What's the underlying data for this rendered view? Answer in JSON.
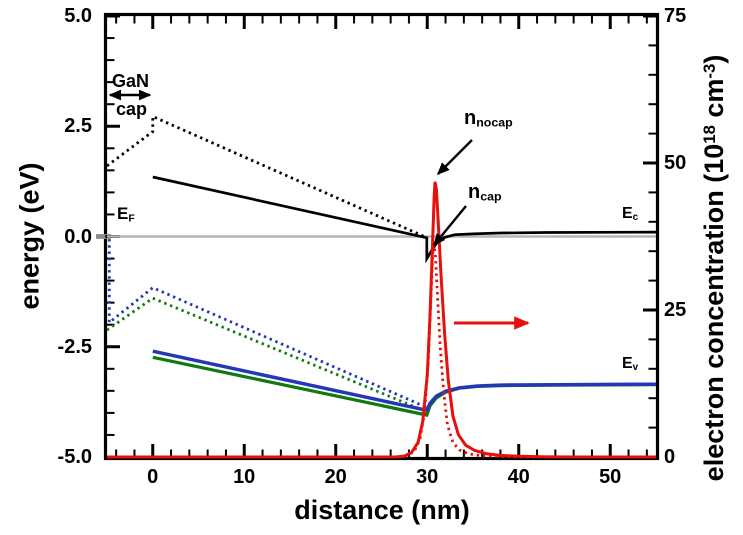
{
  "chart_data": {
    "type": "line",
    "title": "",
    "xlabel": "distance (nm)",
    "ylabel_left": "energy (eV)",
    "ylabel_right_parts": {
      "pre": "electron concentration (10",
      "sup1": "18",
      "mid": " cm",
      "sup2": "-3",
      "post": ")"
    },
    "x_range": [
      -5,
      55
    ],
    "y_left_range": [
      -5,
      5
    ],
    "y_right_range": [
      0,
      75
    ],
    "x_tick_values": [
      0,
      10,
      20,
      30,
      40,
      50
    ],
    "x_tick_labels": [
      "0",
      "10",
      "20",
      "30",
      "40",
      "50"
    ],
    "x_minor_step": 2,
    "y_left_tick_values": [
      5,
      2.5,
      0,
      -2.5,
      -5
    ],
    "y_left_tick_labels": [
      "5.0",
      "2.5",
      "0.0",
      "-2.5",
      "-5.0"
    ],
    "y_left_minor_step": 0.5,
    "y_right_tick_values": [
      75,
      50,
      25,
      0
    ],
    "y_right_tick_labels": [
      "75",
      "50",
      "25",
      "0"
    ],
    "y_right_minor_step": 5,
    "grid": false,
    "legend": "none (in-plot text annotations)",
    "series": [
      {
        "id": "fermi-level",
        "name": "E_F Fermi level",
        "axis": "left",
        "color": "#b5b5b5",
        "style": "solid",
        "width": 2.4,
        "points": [
          [
            -5,
            0
          ],
          [
            55,
            0
          ]
        ]
      },
      {
        "id": "ev-green-cap",
        "name": "valence band 2 with cap",
        "axis": "left",
        "color": "#0f7a0f",
        "style": "dotted",
        "width": 2.8,
        "points": [
          [
            -5,
            -2.12
          ],
          [
            0,
            -1.4
          ],
          [
            29.9,
            -3.97
          ]
        ]
      },
      {
        "id": "ev-blue-cap",
        "name": "valence band 1 with cap",
        "axis": "left",
        "color": "#2438b5",
        "style": "dotted",
        "width": 2.8,
        "points": [
          [
            -4.75,
            -0.06
          ],
          [
            -4.75,
            -1.95
          ],
          [
            0,
            -1.16
          ],
          [
            29.9,
            -3.87
          ]
        ]
      },
      {
        "id": "ev-green-nocap",
        "name": "valence band 2 no cap",
        "axis": "left",
        "color": "#0f7a0f",
        "style": "solid",
        "width": 3.2,
        "points": [
          [
            0,
            -2.74
          ],
          [
            29.95,
            -4.05
          ],
          [
            30.3,
            -3.84
          ],
          [
            31,
            -3.66
          ],
          [
            32,
            -3.53
          ],
          [
            33.5,
            -3.44
          ],
          [
            35.5,
            -3.4
          ],
          [
            38,
            -3.38
          ],
          [
            44,
            -3.37
          ],
          [
            55,
            -3.36
          ]
        ]
      },
      {
        "id": "ev-blue-nocap",
        "name": "valence band 1 no cap (E_v)",
        "axis": "left",
        "color": "#2438b5",
        "style": "solid",
        "width": 3.5,
        "points": [
          [
            0,
            -2.6
          ],
          [
            29.95,
            -3.94
          ],
          [
            30.3,
            -3.78
          ],
          [
            31,
            -3.62
          ],
          [
            32,
            -3.51
          ],
          [
            33.5,
            -3.43
          ],
          [
            35.5,
            -3.39
          ],
          [
            38,
            -3.37
          ],
          [
            44,
            -3.36
          ],
          [
            55,
            -3.35
          ]
        ]
      },
      {
        "id": "ec-cap",
        "name": "conduction band with cap",
        "axis": "left",
        "color": "#000000",
        "style": "dotted",
        "width": 2.8,
        "points": [
          [
            -5,
            1.6
          ],
          [
            0,
            2.38
          ],
          [
            0,
            2.72
          ],
          [
            29.9,
            -0.02
          ]
        ]
      },
      {
        "id": "ec-nocap",
        "name": "conduction band no cap (E_c)",
        "axis": "left",
        "color": "#000000",
        "style": "solid",
        "width": 2.7,
        "points": [
          [
            0,
            1.35
          ],
          [
            29.95,
            -0.03
          ],
          [
            29.95,
            -0.5
          ],
          [
            30.6,
            -0.28
          ],
          [
            31.2,
            -0.1
          ],
          [
            31.9,
            -0.02
          ],
          [
            33,
            0.04
          ],
          [
            35,
            0.06
          ],
          [
            38,
            0.08
          ],
          [
            43,
            0.09
          ],
          [
            55,
            0.1
          ]
        ]
      },
      {
        "id": "n-cap",
        "name": "electron concentration with cap",
        "axis": "right",
        "color": "#e8100c",
        "style": "dotted",
        "width": 2.8,
        "points": [
          [
            -5,
            0
          ],
          [
            26.8,
            0
          ],
          [
            27.8,
            0.2
          ],
          [
            28.6,
            1
          ],
          [
            29.2,
            3
          ],
          [
            29.7,
            7.5
          ],
          [
            30.1,
            16
          ],
          [
            30.4,
            27
          ],
          [
            30.6,
            34.5
          ],
          [
            30.72,
            36.6
          ],
          [
            30.9,
            34
          ],
          [
            31.1,
            28
          ],
          [
            31.4,
            19
          ],
          [
            31.8,
            11
          ],
          [
            32.2,
            5.5
          ],
          [
            32.8,
            2.5
          ],
          [
            33.5,
            1.2
          ],
          [
            34.5,
            0.55
          ],
          [
            36,
            0.2
          ],
          [
            38,
            0.06
          ],
          [
            40,
            0
          ],
          [
            55,
            0
          ]
        ]
      },
      {
        "id": "n-nocap",
        "name": "electron concentration no cap",
        "axis": "right",
        "color": "#e8100c",
        "style": "solid",
        "width": 3,
        "points": [
          [
            -5,
            0
          ],
          [
            26.5,
            0
          ],
          [
            27.5,
            0.15
          ],
          [
            28.3,
            0.8
          ],
          [
            29,
            2.5
          ],
          [
            29.5,
            6
          ],
          [
            30,
            14
          ],
          [
            30.3,
            24
          ],
          [
            30.55,
            35
          ],
          [
            30.75,
            44
          ],
          [
            30.85,
            46.8
          ],
          [
            31,
            45.5
          ],
          [
            31.2,
            40
          ],
          [
            31.5,
            31
          ],
          [
            31.9,
            21
          ],
          [
            32.3,
            13
          ],
          [
            32.8,
            7
          ],
          [
            33.4,
            3.8
          ],
          [
            34.2,
            2
          ],
          [
            35.2,
            1.1
          ],
          [
            36.5,
            0.55
          ],
          [
            38,
            0.28
          ],
          [
            40,
            0.12
          ],
          [
            42.5,
            0.04
          ],
          [
            46,
            0
          ],
          [
            55,
            0
          ]
        ]
      }
    ]
  },
  "annotations": {
    "gan": {
      "line1": "GaN",
      "line2": "cap"
    },
    "ef": {
      "base": "E",
      "sub": "F"
    },
    "ec": {
      "base": "E",
      "sub": "c"
    },
    "ev": {
      "base": "E",
      "sub": "v"
    },
    "n_nocap": {
      "base": "n",
      "sub": "nocap"
    },
    "n_cap": {
      "base": "n",
      "sub": "cap"
    },
    "arrows": [
      {
        "id": "gan-cap-extent-arrow",
        "from": [
          110,
          95
        ],
        "to": [
          150,
          95
        ],
        "color": "#000000",
        "width": 2.4,
        "double": true
      },
      {
        "id": "n-nocap-arrow",
        "from": [
          472,
          140
        ],
        "to": [
          438,
          174
        ],
        "color": "#000000",
        "width": 2.4,
        "double": false
      },
      {
        "id": "n-cap-arrow",
        "from": [
          466,
          206
        ],
        "to": [
          434,
          245
        ],
        "color": "#000000",
        "width": 2.4,
        "double": false
      },
      {
        "id": "right-axis-pointer-arrow",
        "from": [
          454,
          323
        ],
        "to": [
          528,
          323
        ],
        "color": "#e8100c",
        "width": 3,
        "double": false
      }
    ],
    "fermi_left_marker_color": "#8c8c8c"
  },
  "colors": {
    "background": "#ffffff",
    "frame": "#000000",
    "red": "#e8100c",
    "blue": "#2438b5",
    "green": "#0f7a0f",
    "gray": "#b5b5b5"
  }
}
